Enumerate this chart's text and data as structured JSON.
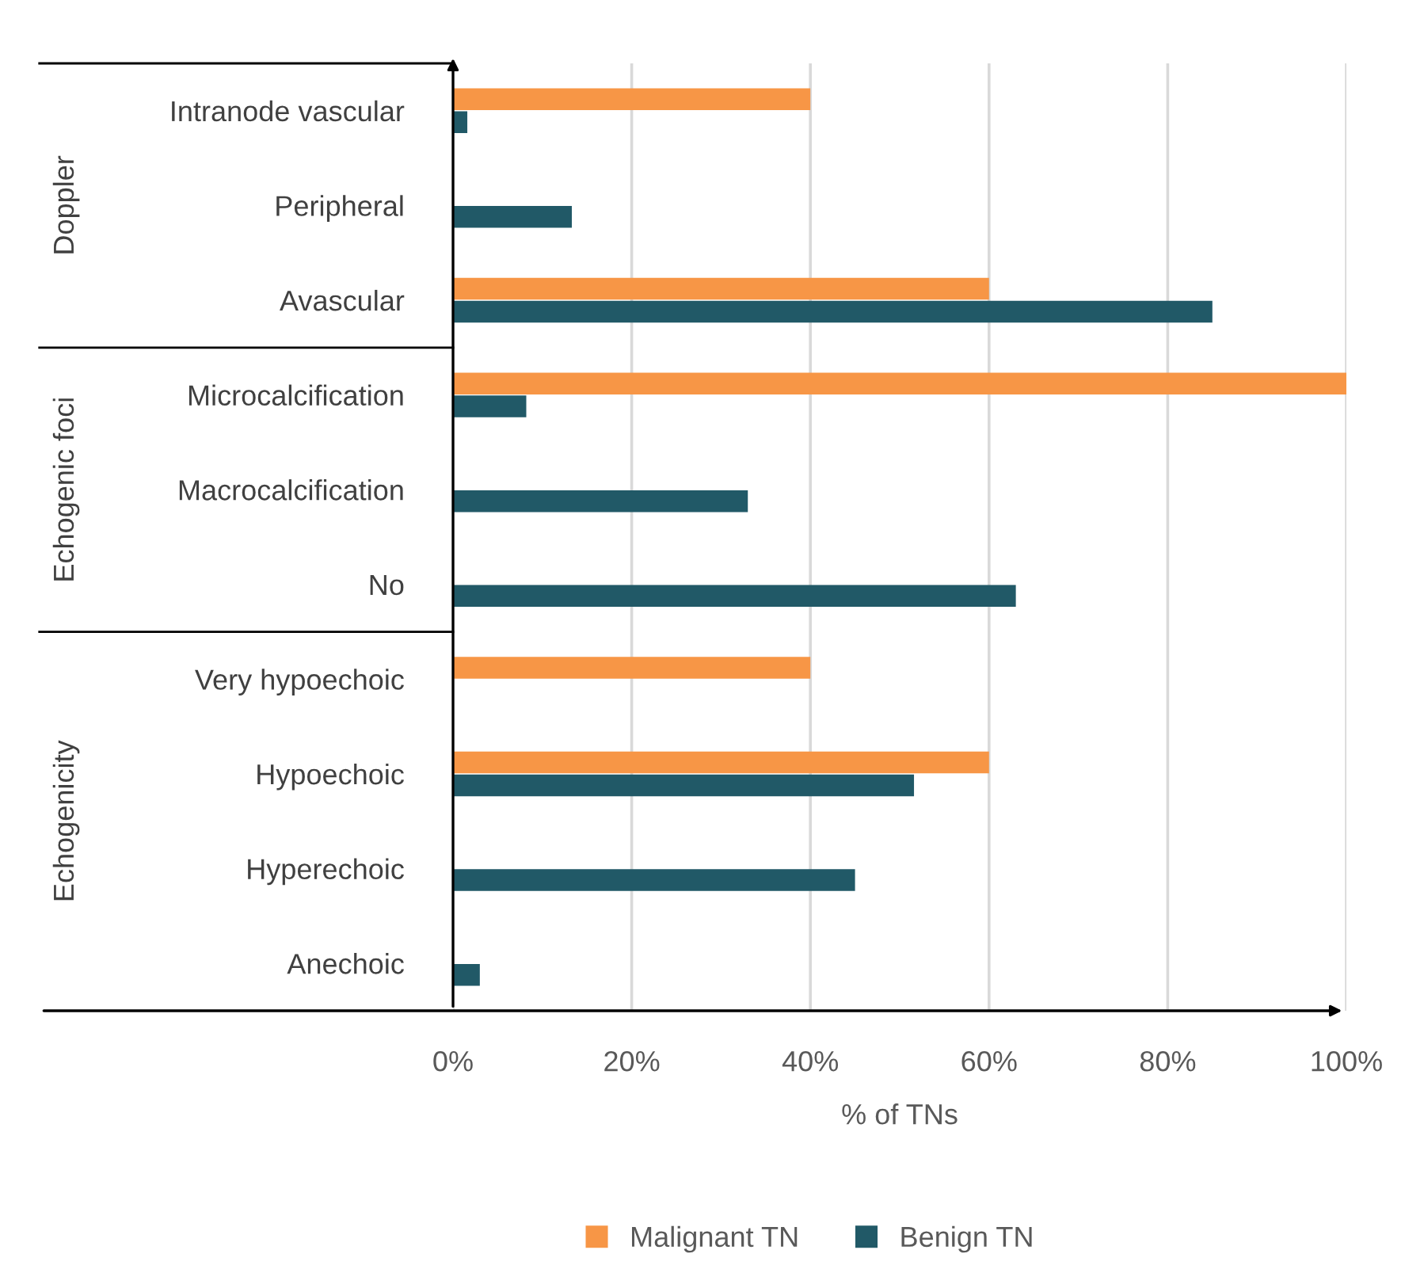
{
  "chart_data": {
    "type": "bar",
    "orientation": "horizontal",
    "xlabel": "% of TNs",
    "categories": [
      "Intranode vascular",
      "Peripheral",
      "Avascular",
      "Microcalcification",
      "Macrocalcification",
      "No",
      "Very hypoechoic",
      "Hypoechoic",
      "Hyperechoic",
      "Anechoic"
    ],
    "series": [
      {
        "name": "Malignant TN",
        "color": "#f79646",
        "values": [
          40,
          null,
          60,
          100,
          null,
          null,
          40,
          60,
          null,
          null
        ]
      },
      {
        "name": "Benign TN",
        "color": "#215967",
        "values": [
          1.6,
          13.3,
          85,
          8.2,
          33,
          63,
          null,
          51.6,
          45,
          3
        ]
      }
    ],
    "xlim": [
      0,
      100
    ],
    "xticks": [
      {
        "value": 0,
        "label": "0%"
      },
      {
        "value": 20,
        "label": "20%"
      },
      {
        "value": 40,
        "label": "40%"
      },
      {
        "value": 60,
        "label": "60%"
      },
      {
        "value": 80,
        "label": "80%"
      },
      {
        "value": 100,
        "label": "100%"
      }
    ],
    "grid": "x",
    "legend": "bottom",
    "annotations": [
      "Doppler",
      "Echogenic foci",
      "Echogenicity"
    ]
  }
}
